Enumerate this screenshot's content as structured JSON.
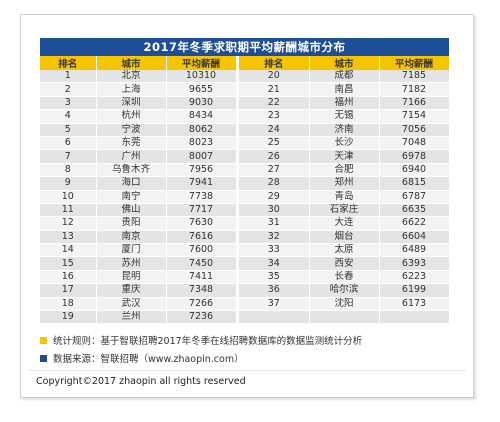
{
  "title": "2017年冬季求职期平均薪酬城市分布",
  "headers": [
    "排名",
    "城市",
    "平均薪酬",
    "排名",
    "城市",
    "平均薪酬"
  ],
  "left_rows": [
    [
      "1",
      "北京",
      "10310"
    ],
    [
      "2",
      "上海",
      "9655"
    ],
    [
      "3",
      "深圳",
      "9030"
    ],
    [
      "4",
      "杭州",
      "8434"
    ],
    [
      "5",
      "宁波",
      "8062"
    ],
    [
      "6",
      "东莞",
      "8023"
    ],
    [
      "7",
      "广州",
      "8007"
    ],
    [
      "8",
      "乌鲁木齐",
      "7956"
    ],
    [
      "9",
      "海口",
      "7941"
    ],
    [
      "10",
      "南宁",
      "7738"
    ],
    [
      "11",
      "佛山",
      "7717"
    ],
    [
      "12",
      "贵阳",
      "7630"
    ],
    [
      "13",
      "南京",
      "7616"
    ],
    [
      "14",
      "厦门",
      "7600"
    ],
    [
      "15",
      "苏州",
      "7450"
    ],
    [
      "16",
      "昆明",
      "7411"
    ],
    [
      "17",
      "重庆",
      "7348"
    ],
    [
      "18",
      "武汉",
      "7266"
    ],
    [
      "19",
      "兰州",
      "7236"
    ]
  ],
  "right_rows": [
    [
      "20",
      "成都",
      "7185"
    ],
    [
      "21",
      "南昌",
      "7182"
    ],
    [
      "22",
      "福州",
      "7166"
    ],
    [
      "23",
      "无锡",
      "7154"
    ],
    [
      "24",
      "济南",
      "7056"
    ],
    [
      "25",
      "长沙",
      "7048"
    ],
    [
      "26",
      "天津",
      "6978"
    ],
    [
      "27",
      "合肥",
      "6940"
    ],
    [
      "28",
      "郑州",
      "6815"
    ],
    [
      "29",
      "青岛",
      "6787"
    ],
    [
      "30",
      "石家庄",
      "6635"
    ],
    [
      "31",
      "大连",
      "6622"
    ],
    [
      "32",
      "烟台",
      "6604"
    ],
    [
      "33",
      "太原",
      "6489"
    ],
    [
      "34",
      "西安",
      "6393"
    ],
    [
      "35",
      "长春",
      "6223"
    ],
    [
      "36",
      "哈尔滨",
      "6199"
    ],
    [
      "37",
      "沈阳",
      "6173"
    ],
    [
      "",
      "",
      ""
    ]
  ],
  "notes": {
    "rule": "统计规则：基于智联招聘2017年冬季在线招聘数据库的数据监测统计分析",
    "source": "数据来源：智联招聘（www.zhaopin.com）"
  },
  "copyright": "Copyright©2017 zhaopin all rights reserved",
  "colors": {
    "title_bg": "#1f4e98",
    "header_bg": "#f6c400",
    "row_odd": "#e4e4e4",
    "row_even": "#f3f3f3",
    "note_yellow": "#f6c400",
    "note_blue": "#1f4e98"
  }
}
